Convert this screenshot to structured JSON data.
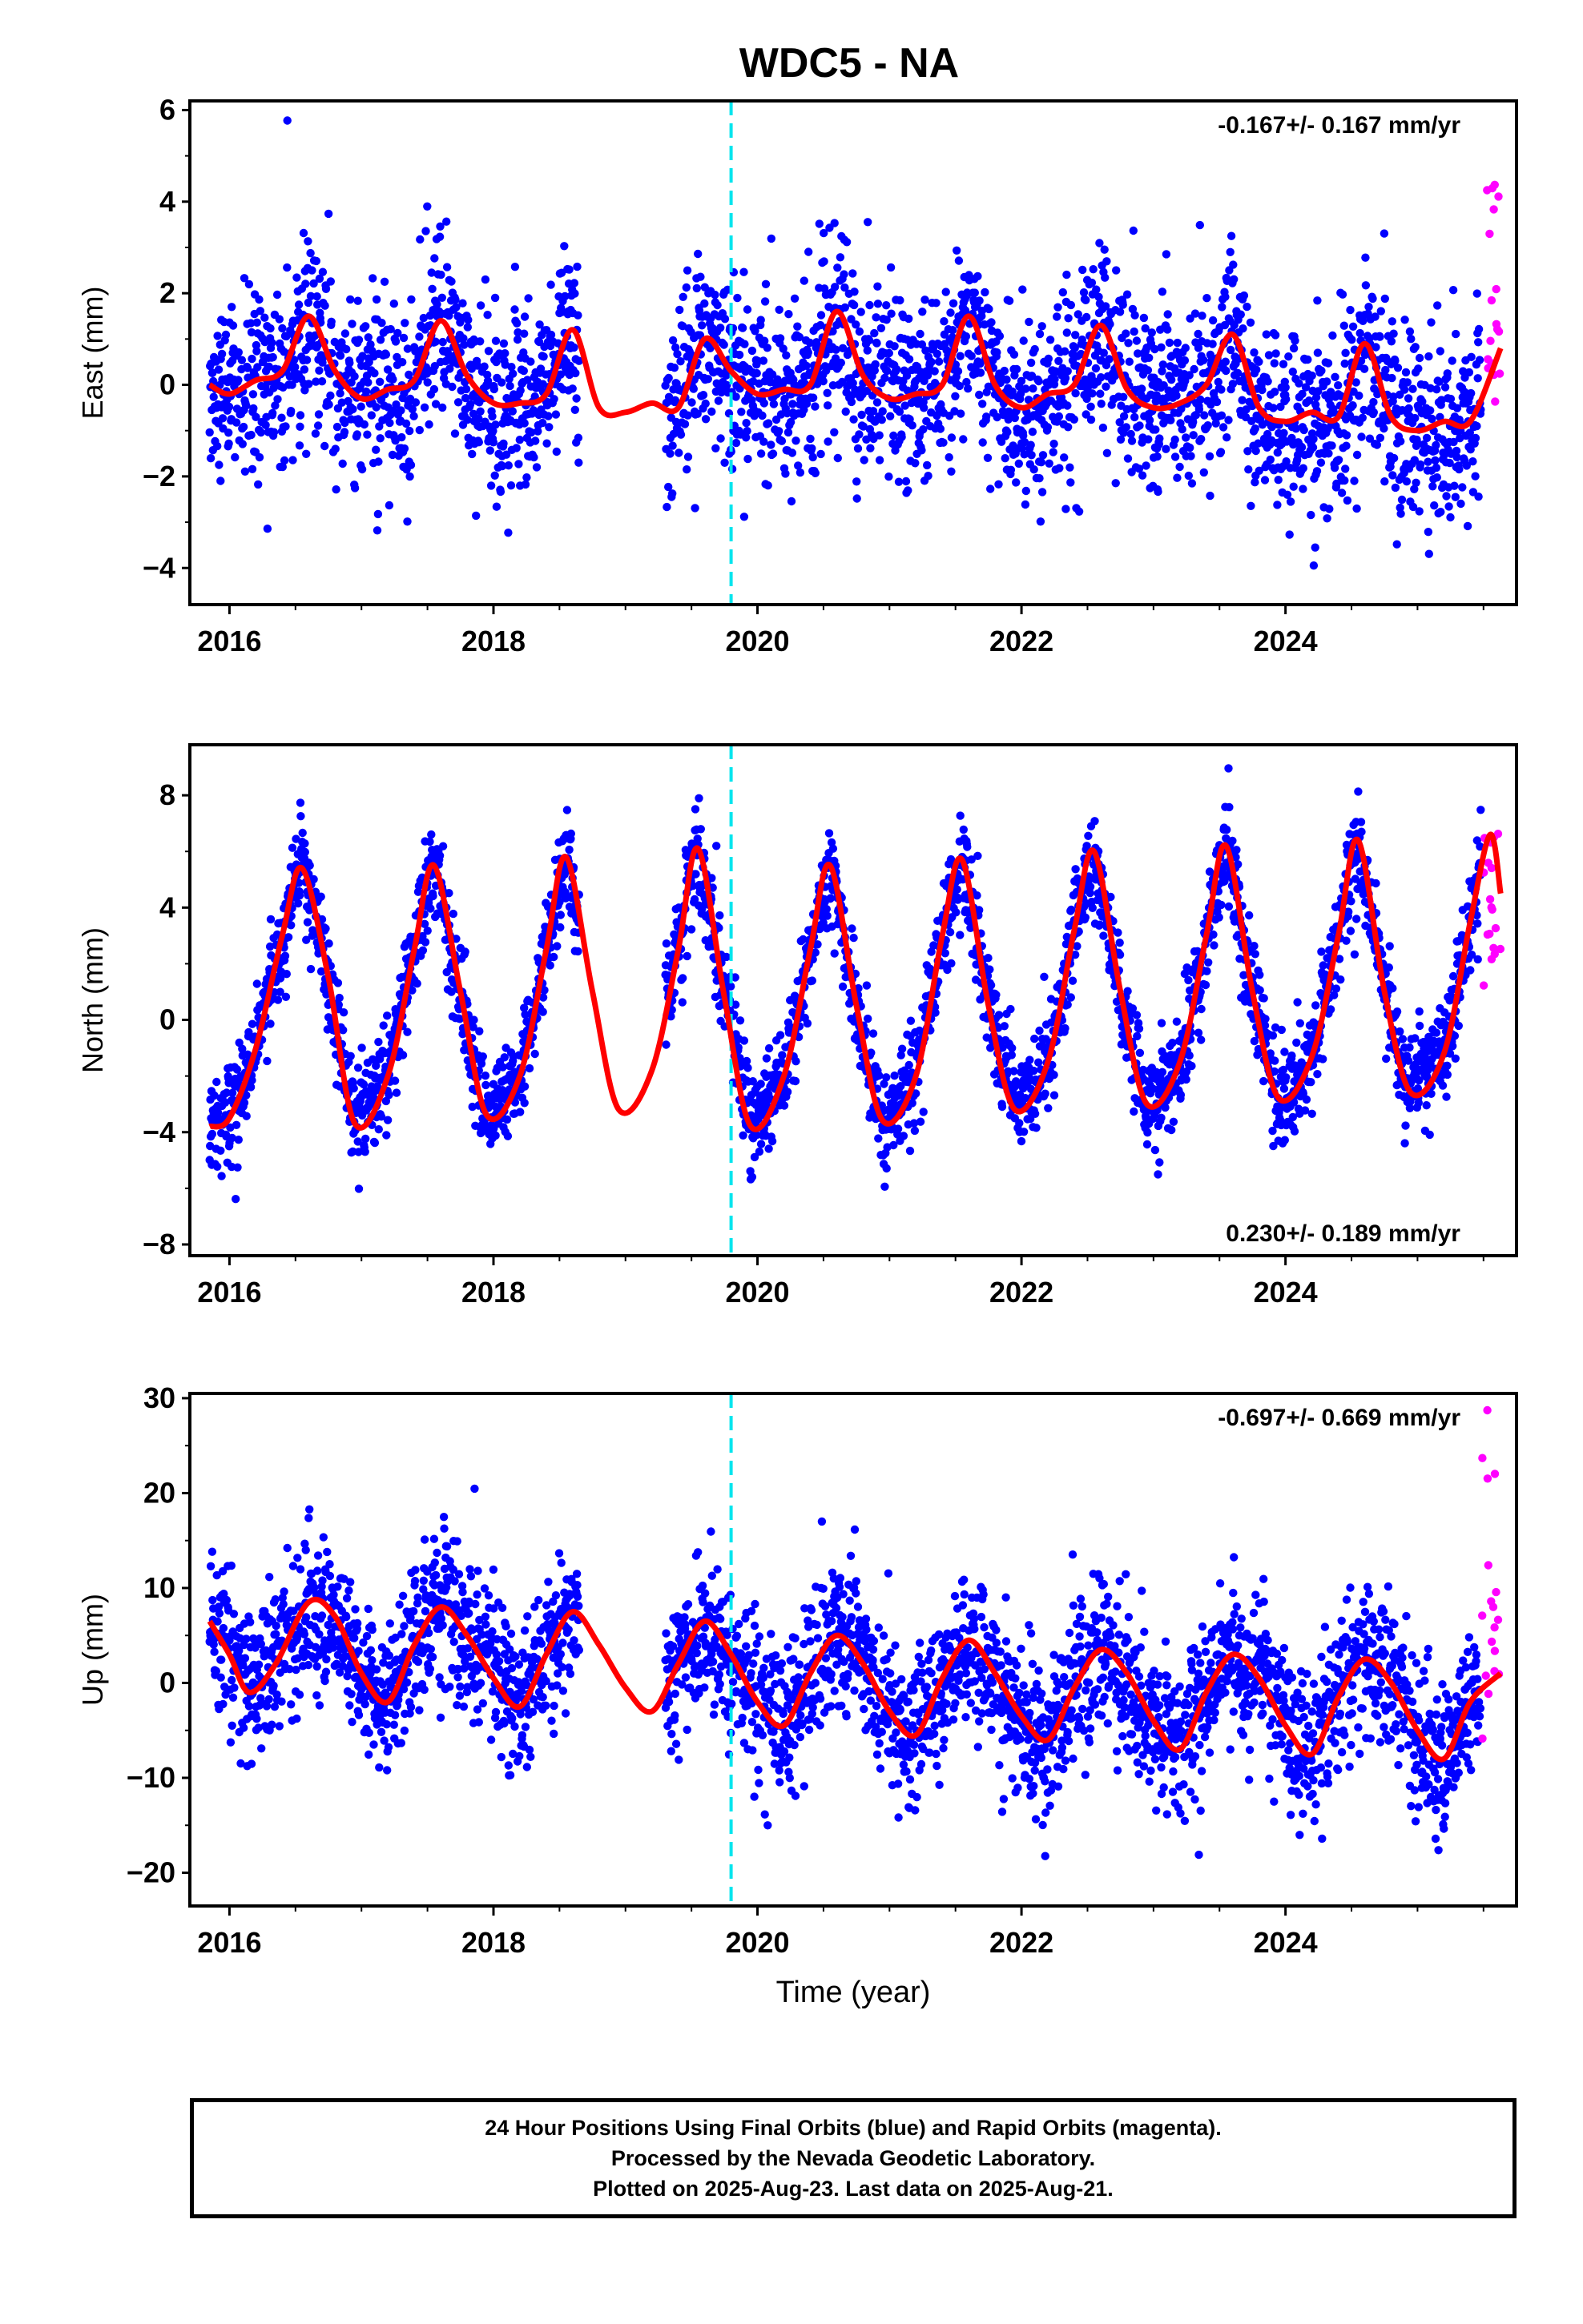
{
  "title": "WDC5 - NA",
  "colors": {
    "final": "#0000ff",
    "rapid": "#ff00ff",
    "model": "#ff0000",
    "event": "#00e5ee",
    "axis": "#000000"
  },
  "chart_data": [
    {
      "type": "scatter",
      "component": "East",
      "ylabel": "East (mm)",
      "rate": "-0.167+/- 0.167 mm/yr",
      "rate_position": "top-right",
      "xlim": [
        2015.7,
        2025.75
      ],
      "ylim": [
        -4.8,
        6.2
      ],
      "yticks": [
        -4,
        -2,
        0,
        2,
        4,
        6
      ],
      "xticks": [
        2016,
        2018,
        2020,
        2022,
        2024
      ],
      "grid": false,
      "event_line_x": 2019.8,
      "gaps": [
        [
          2018.65,
          2019.3
        ]
      ],
      "final_orbit_range": [
        2015.85,
        2025.48
      ],
      "rapid_orbit_range": [
        2025.49,
        2025.63
      ],
      "series": [
        {
          "name": "Final Orbits",
          "color": "blue",
          "approx_scatter_sd": 1.0
        },
        {
          "name": "Rapid Orbits",
          "color": "magenta",
          "approx_range": [
            -1.4,
            4.6
          ]
        },
        {
          "name": "Model",
          "color": "red",
          "x": [
            2015.85,
            2016.0,
            2016.2,
            2016.4,
            2016.6,
            2016.8,
            2017.0,
            2017.2,
            2017.4,
            2017.6,
            2017.8,
            2018.0,
            2018.2,
            2018.4,
            2018.6,
            2018.8,
            2019.0,
            2019.2,
            2019.4,
            2019.6,
            2019.8,
            2020.0,
            2020.2,
            2020.4,
            2020.6,
            2020.8,
            2021.0,
            2021.2,
            2021.4,
            2021.6,
            2021.8,
            2022.0,
            2022.2,
            2022.4,
            2022.6,
            2022.8,
            2023.0,
            2023.2,
            2023.4,
            2023.6,
            2023.8,
            2024.0,
            2024.2,
            2024.4,
            2024.6,
            2024.8,
            2025.0,
            2025.2,
            2025.4,
            2025.63
          ],
          "y": [
            0.0,
            -0.2,
            0.1,
            0.3,
            1.5,
            0.3,
            -0.3,
            -0.1,
            0.1,
            1.4,
            0.2,
            -0.4,
            -0.4,
            -0.2,
            1.2,
            -0.5,
            -0.6,
            -0.4,
            -0.5,
            1.0,
            0.3,
            -0.2,
            -0.1,
            0.0,
            1.6,
            0.2,
            -0.3,
            -0.2,
            0.0,
            1.5,
            0.0,
            -0.5,
            -0.2,
            0.0,
            1.3,
            -0.1,
            -0.5,
            -0.4,
            0.0,
            1.1,
            -0.5,
            -0.8,
            -0.6,
            -0.7,
            0.9,
            -0.7,
            -1.0,
            -0.8,
            -0.8,
            0.8
          ]
        }
      ]
    },
    {
      "type": "scatter",
      "component": "North",
      "ylabel": "North (mm)",
      "rate": "0.230+/- 0.189 mm/yr",
      "rate_position": "bottom-right",
      "xlim": [
        2015.7,
        2025.75
      ],
      "ylim": [
        -8.4,
        9.8
      ],
      "yticks": [
        -8,
        -4,
        0,
        4,
        8
      ],
      "xticks": [
        2016,
        2018,
        2020,
        2022,
        2024
      ],
      "grid": false,
      "event_line_x": 2019.8,
      "gaps": [
        [
          2018.65,
          2019.3
        ]
      ],
      "final_orbit_range": [
        2015.85,
        2025.48
      ],
      "rapid_orbit_range": [
        2025.49,
        2025.63
      ],
      "series": [
        {
          "name": "Final Orbits",
          "color": "blue",
          "approx_scatter_sd": 0.9
        },
        {
          "name": "Rapid Orbits",
          "color": "magenta",
          "approx_range": [
            1.2,
            6.8
          ]
        },
        {
          "name": "Model",
          "color": "red",
          "x": [
            2015.85,
            2016.0,
            2016.2,
            2016.4,
            2016.55,
            2016.75,
            2016.95,
            2017.2,
            2017.4,
            2017.55,
            2017.75,
            2017.95,
            2018.2,
            2018.4,
            2018.55,
            2018.75,
            2018.95,
            2019.2,
            2019.4,
            2019.55,
            2019.75,
            2019.95,
            2020.2,
            2020.4,
            2020.55,
            2020.75,
            2020.95,
            2021.2,
            2021.4,
            2021.55,
            2021.75,
            2021.95,
            2022.2,
            2022.4,
            2022.55,
            2022.75,
            2022.95,
            2023.2,
            2023.4,
            2023.55,
            2023.75,
            2023.95,
            2024.2,
            2024.4,
            2024.55,
            2024.75,
            2024.95,
            2025.2,
            2025.4,
            2025.55,
            2025.63
          ],
          "y": [
            -3.8,
            -3.5,
            -1.0,
            3.0,
            5.4,
            1.5,
            -3.7,
            -2.0,
            2.5,
            5.5,
            1.0,
            -3.4,
            -2.0,
            2.5,
            5.8,
            1.0,
            -3.2,
            -1.8,
            2.5,
            6.1,
            0.8,
            -3.8,
            -2.0,
            2.5,
            5.5,
            0.5,
            -3.6,
            -2.0,
            3.0,
            5.7,
            0.5,
            -3.2,
            -1.5,
            3.2,
            6.0,
            1.0,
            -3.0,
            -1.5,
            3.0,
            6.2,
            1.0,
            -2.8,
            -1.3,
            3.0,
            6.4,
            1.0,
            -2.6,
            -1.2,
            3.5,
            6.6,
            4.5
          ]
        }
      ]
    },
    {
      "type": "scatter",
      "component": "Up",
      "ylabel": "Up (mm)",
      "rate": "-0.697+/- 0.669 mm/yr",
      "rate_position": "top-right",
      "xlim": [
        2015.7,
        2025.75
      ],
      "ylim": [
        -23.5,
        30.5
      ],
      "yticks": [
        -20,
        -10,
        0,
        10,
        20,
        30
      ],
      "xticks": [
        2016,
        2018,
        2020,
        2022,
        2024
      ],
      "xlabel": "Time (year)",
      "grid": false,
      "event_line_x": 2019.8,
      "gaps": [
        [
          2018.65,
          2019.3
        ]
      ],
      "final_orbit_range": [
        2015.85,
        2025.48
      ],
      "rapid_orbit_range": [
        2025.49,
        2025.63
      ],
      "series": [
        {
          "name": "Final Orbits",
          "color": "blue",
          "approx_scatter_sd": 4.0
        },
        {
          "name": "Rapid Orbits",
          "color": "magenta",
          "approx_range": [
            -6.5,
            29.5
          ]
        },
        {
          "name": "Model",
          "color": "red",
          "x": [
            2015.85,
            2016.0,
            2016.15,
            2016.35,
            2016.6,
            2016.8,
            2017.0,
            2017.2,
            2017.4,
            2017.6,
            2017.8,
            2018.0,
            2018.2,
            2018.4,
            2018.6,
            2018.8,
            2019.0,
            2019.2,
            2019.4,
            2019.6,
            2019.8,
            2020.0,
            2020.2,
            2020.4,
            2020.6,
            2020.8,
            2021.0,
            2021.2,
            2021.4,
            2021.6,
            2021.8,
            2022.0,
            2022.2,
            2022.4,
            2022.6,
            2022.8,
            2023.0,
            2023.2,
            2023.4,
            2023.6,
            2023.8,
            2024.0,
            2024.2,
            2024.4,
            2024.6,
            2024.8,
            2025.0,
            2025.2,
            2025.4,
            2025.63
          ],
          "y": [
            6.5,
            3.0,
            -1.0,
            2.0,
            8.5,
            7.0,
            1.0,
            -2.0,
            4.0,
            8.0,
            5.0,
            0.5,
            -2.5,
            3.0,
            7.5,
            4.0,
            -0.5,
            -3.0,
            2.0,
            6.5,
            3.0,
            -2.0,
            -4.5,
            1.0,
            5.0,
            2.0,
            -3.0,
            -5.5,
            0.5,
            4.5,
            1.0,
            -3.5,
            -6.0,
            -0.5,
            3.5,
            1.0,
            -4.0,
            -7.0,
            -1.0,
            3.0,
            0.5,
            -4.5,
            -7.5,
            -1.5,
            2.5,
            0.0,
            -5.0,
            -8.0,
            -2.0,
            1.0
          ]
        }
      ]
    }
  ],
  "caption": [
    "24 Hour Positions Using Final Orbits (blue) and Rapid Orbits (magenta).",
    "Processed by the Nevada Geodetic Laboratory.",
    "Plotted on 2025-Aug-23. Last data on 2025-Aug-21."
  ]
}
